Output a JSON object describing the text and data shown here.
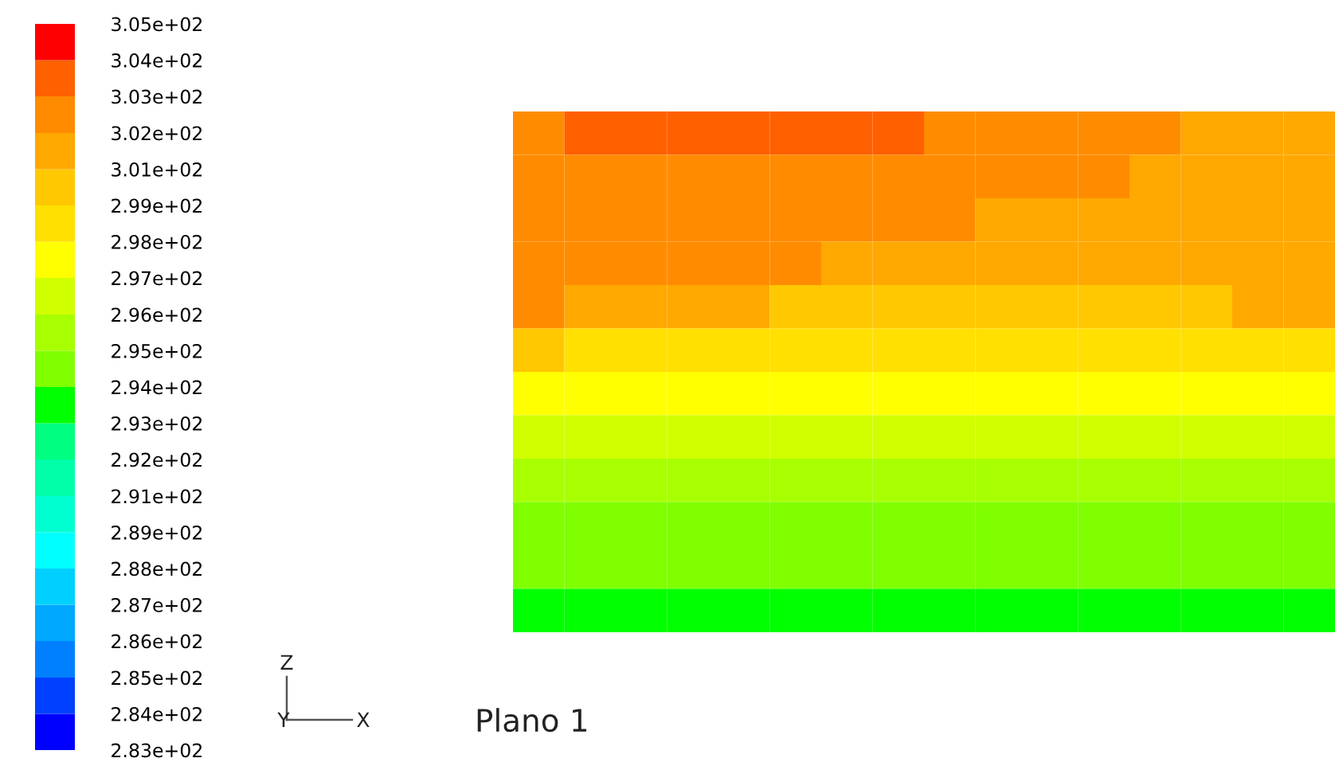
{
  "chart_data": {
    "type": "heatmap",
    "categories": [
      null,
      null,
      null,
      null,
      null,
      null,
      null,
      null,
      null,
      null,
      null,
      null,
      null,
      null,
      null,
      null
    ],
    "y_categories": [
      null,
      null,
      null,
      null,
      null,
      null,
      null,
      null,
      null,
      null,
      null,
      null
    ],
    "cells": [
      [
        302.2,
        303.3,
        303.3,
        303.3,
        303.3,
        303.3,
        303.3,
        303.3,
        302.2,
        302.2,
        302.2,
        302.2,
        302.2,
        301.1,
        301.1,
        301.1
      ],
      [
        302.2,
        302.2,
        302.2,
        302.2,
        302.2,
        302.2,
        302.2,
        302.2,
        302.2,
        302.2,
        302.2,
        302.2,
        301.1,
        301.1,
        301.1,
        301.1
      ],
      [
        302.2,
        302.2,
        302.2,
        302.2,
        302.2,
        302.2,
        302.2,
        302.2,
        302.2,
        301.1,
        301.1,
        301.1,
        301.1,
        301.1,
        301.1,
        301.1
      ],
      [
        302.2,
        302.2,
        302.2,
        302.2,
        302.2,
        302.2,
        301.1,
        301.1,
        301.1,
        301.1,
        301.1,
        301.1,
        301.1,
        301.1,
        301.1,
        301.1
      ],
      [
        302.2,
        301.1,
        301.1,
        301.1,
        301.1,
        300.0,
        300.0,
        300.0,
        300.0,
        300.0,
        300.0,
        300.0,
        300.0,
        300.0,
        301.1,
        301.1
      ],
      [
        300.0,
        298.5,
        298.5,
        298.5,
        298.5,
        298.5,
        298.5,
        298.5,
        298.5,
        298.5,
        298.5,
        298.5,
        298.5,
        298.5,
        298.5,
        298.5
      ],
      [
        297.8,
        297.8,
        297.8,
        297.8,
        297.8,
        297.8,
        297.8,
        297.8,
        297.8,
        297.8,
        297.8,
        297.8,
        297.8,
        297.8,
        297.8,
        297.8
      ],
      [
        296.8,
        296.8,
        296.8,
        296.8,
        296.8,
        296.8,
        296.8,
        296.8,
        296.8,
        296.8,
        296.8,
        296.8,
        296.8,
        296.8,
        296.8,
        296.8
      ],
      [
        295.6,
        295.6,
        295.6,
        295.6,
        295.6,
        295.6,
        295.6,
        295.6,
        295.6,
        295.6,
        295.6,
        295.6,
        295.6,
        295.6,
        295.6,
        295.6
      ],
      [
        294.5,
        294.5,
        294.5,
        294.5,
        294.5,
        294.5,
        294.5,
        294.5,
        294.5,
        294.5,
        294.5,
        294.5,
        294.5,
        294.5,
        294.5,
        294.5
      ],
      [
        294.5,
        294.5,
        294.5,
        294.5,
        294.5,
        294.5,
        294.5,
        294.5,
        294.5,
        294.5,
        294.5,
        294.5,
        294.5,
        294.5,
        294.5,
        294.5
      ],
      [
        293.5,
        293.5,
        293.5,
        293.5,
        293.5,
        293.5,
        293.5,
        293.5,
        293.5,
        293.5,
        293.5,
        293.5,
        293.5,
        293.5,
        293.5,
        293.5
      ]
    ],
    "colors": [
      "#0000ff",
      "#0040ff",
      "#0080ff",
      "#00a8ff",
      "#00d0ff",
      "#00ffff",
      "#00ffd0",
      "#00ffa8",
      "#00ff80",
      "#00ff00",
      "#80ff00",
      "#a8ff00",
      "#d0ff00",
      "#ffff00",
      "#ffe000",
      "#ffc800",
      "#ffa800",
      "#ff8c00",
      "#ff6000",
      "#ff0000"
    ],
    "clim": [
      282.88,
      304.92
    ],
    "cticks": [
      {
        "value": 282.88,
        "label": "2.83e+02"
      },
      {
        "value": 283.98,
        "label": "2.84e+02"
      },
      {
        "value": 285.08,
        "label": "2.85e+02"
      },
      {
        "value": 286.19,
        "label": "2.86e+02"
      },
      {
        "value": 287.29,
        "label": "2.87e+02"
      },
      {
        "value": 288.39,
        "label": "2.88e+02"
      },
      {
        "value": 289.49,
        "label": "2.89e+02"
      },
      {
        "value": 290.59,
        "label": "2.91e+02"
      },
      {
        "value": 291.7,
        "label": "2.92e+02"
      },
      {
        "value": 292.8,
        "label": "2.93e+02"
      },
      {
        "value": 293.9,
        "label": "2.94e+02"
      },
      {
        "value": 295.0,
        "label": "2.95e+02"
      },
      {
        "value": 296.1,
        "label": "2.96e+02"
      },
      {
        "value": 297.21,
        "label": "2.97e+02"
      },
      {
        "value": 298.31,
        "label": "2.98e+02"
      },
      {
        "value": 299.41,
        "label": "2.99e+02"
      },
      {
        "value": 300.51,
        "label": "3.01e+02"
      },
      {
        "value": 301.61,
        "label": "3.02e+02"
      },
      {
        "value": 302.72,
        "label": "3.03e+02"
      },
      {
        "value": 303.82,
        "label": "3.04e+02"
      },
      {
        "value": 304.92,
        "label": "3.05e+02"
      }
    ],
    "tick_labels": false,
    "annotations": [
      "Plano 1",
      "Z",
      "Y",
      "X"
    ]
  }
}
